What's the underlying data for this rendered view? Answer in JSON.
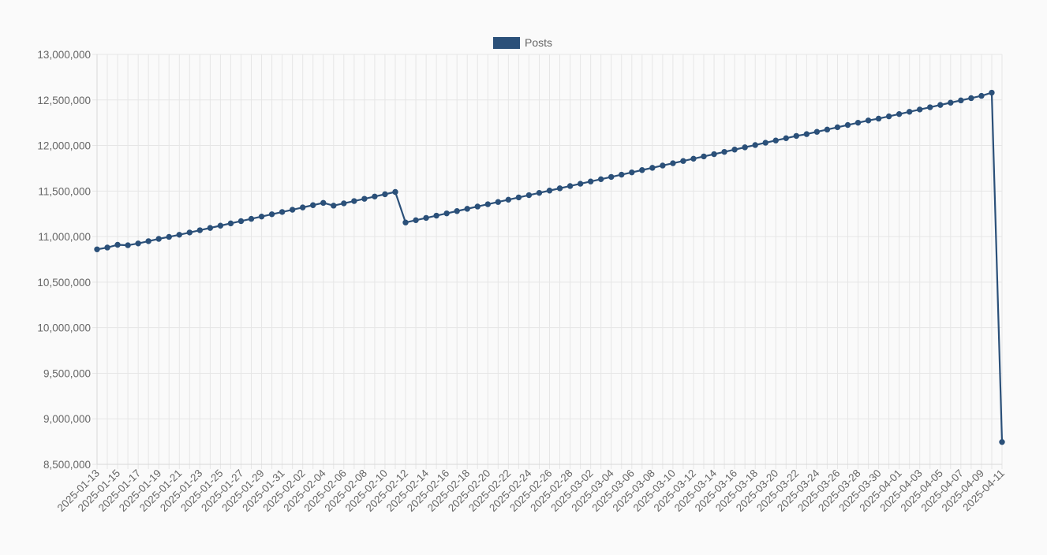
{
  "chart_data": {
    "type": "line",
    "legend": {
      "position": "top",
      "label": "Posts",
      "color": "#2b5079"
    },
    "y_axis": {
      "min": 8500000,
      "max": 13000000,
      "step": 500000,
      "tick_labels": [
        "13,000,000",
        "12,500,000",
        "12,000,000",
        "11,500,000",
        "11,000,000",
        "10,500,000",
        "10,000,000",
        "9,500,000",
        "9,000,000",
        "8,500,000"
      ]
    },
    "x_axis": {
      "tick_labels": [
        "2025-01-13",
        "2025-01-15",
        "2025-01-17",
        "2025-01-19",
        "2025-01-21",
        "2025-01-23",
        "2025-01-25",
        "2025-01-27",
        "2025-01-29",
        "2025-01-31",
        "2025-02-02",
        "2025-02-04",
        "2025-02-06",
        "2025-02-08",
        "2025-02-10",
        "2025-02-12",
        "2025-02-14",
        "2025-02-16",
        "2025-02-18",
        "2025-02-20",
        "2025-02-22",
        "2025-02-24",
        "2025-02-26",
        "2025-02-28",
        "2025-03-02",
        "2025-03-04",
        "2025-03-06",
        "2025-03-08",
        "2025-03-10",
        "2025-03-12",
        "2025-03-14",
        "2025-03-16",
        "2025-03-18",
        "2025-03-20",
        "2025-03-22",
        "2025-03-24",
        "2025-03-26",
        "2025-03-28",
        "2025-03-30",
        "2025-04-01",
        "2025-04-03",
        "2025-04-05",
        "2025-04-07",
        "2025-04-09",
        "2025-04-11"
      ]
    },
    "grid": true,
    "series": [
      {
        "name": "Posts",
        "color": "#2b5079",
        "x": [
          "2025-01-13",
          "2025-01-14",
          "2025-01-15",
          "2025-01-16",
          "2025-01-17",
          "2025-01-18",
          "2025-01-19",
          "2025-01-20",
          "2025-01-21",
          "2025-01-22",
          "2025-01-23",
          "2025-01-24",
          "2025-01-25",
          "2025-01-26",
          "2025-01-27",
          "2025-01-28",
          "2025-01-29",
          "2025-01-30",
          "2025-01-31",
          "2025-02-01",
          "2025-02-02",
          "2025-02-03",
          "2025-02-04",
          "2025-02-05",
          "2025-02-06",
          "2025-02-07",
          "2025-02-08",
          "2025-02-09",
          "2025-02-10",
          "2025-02-11",
          "2025-02-12",
          "2025-02-13",
          "2025-02-14",
          "2025-02-15",
          "2025-02-16",
          "2025-02-17",
          "2025-02-18",
          "2025-02-19",
          "2025-02-20",
          "2025-02-21",
          "2025-02-22",
          "2025-02-23",
          "2025-02-24",
          "2025-02-25",
          "2025-02-26",
          "2025-02-27",
          "2025-02-28",
          "2025-03-01",
          "2025-03-02",
          "2025-03-03",
          "2025-03-04",
          "2025-03-05",
          "2025-03-06",
          "2025-03-07",
          "2025-03-08",
          "2025-03-09",
          "2025-03-10",
          "2025-03-11",
          "2025-03-12",
          "2025-03-13",
          "2025-03-14",
          "2025-03-15",
          "2025-03-16",
          "2025-03-17",
          "2025-03-18",
          "2025-03-19",
          "2025-03-20",
          "2025-03-21",
          "2025-03-22",
          "2025-03-23",
          "2025-03-24",
          "2025-03-25",
          "2025-03-26",
          "2025-03-27",
          "2025-03-28",
          "2025-03-29",
          "2025-03-30",
          "2025-03-31",
          "2025-04-01",
          "2025-04-02",
          "2025-04-03",
          "2025-04-04",
          "2025-04-05",
          "2025-04-06",
          "2025-04-07",
          "2025-04-08",
          "2025-04-09",
          "2025-04-10",
          "2025-04-11"
        ],
        "values": [
          10860000,
          10880000,
          10910000,
          10905000,
          10925000,
          10950000,
          10975000,
          10997000,
          11020000,
          11045000,
          11070000,
          11095000,
          11120000,
          11145000,
          11170000,
          11195000,
          11220000,
          11245000,
          11270000,
          11295000,
          11320000,
          11345000,
          11370000,
          11340000,
          11365000,
          11390000,
          11415000,
          11440000,
          11465000,
          11490000,
          11155000,
          11180000,
          11205000,
          11230000,
          11255000,
          11280000,
          11305000,
          11330000,
          11355000,
          11380000,
          11405000,
          11430000,
          11455000,
          11480000,
          11505000,
          11530000,
          11555000,
          11580000,
          11605000,
          11630000,
          11655000,
          11680000,
          11705000,
          11730000,
          11755000,
          11780000,
          11805000,
          11830000,
          11855000,
          11880000,
          11905000,
          11930000,
          11955000,
          11980000,
          12005000,
          12030000,
          12055000,
          12080000,
          12105000,
          12125000,
          12150000,
          12175000,
          12200000,
          12225000,
          12250000,
          12275000,
          12295000,
          12320000,
          12345000,
          12370000,
          12395000,
          12420000,
          12445000,
          12470000,
          12495000,
          12520000,
          12545000,
          12580000,
          8745000
        ]
      }
    ]
  }
}
